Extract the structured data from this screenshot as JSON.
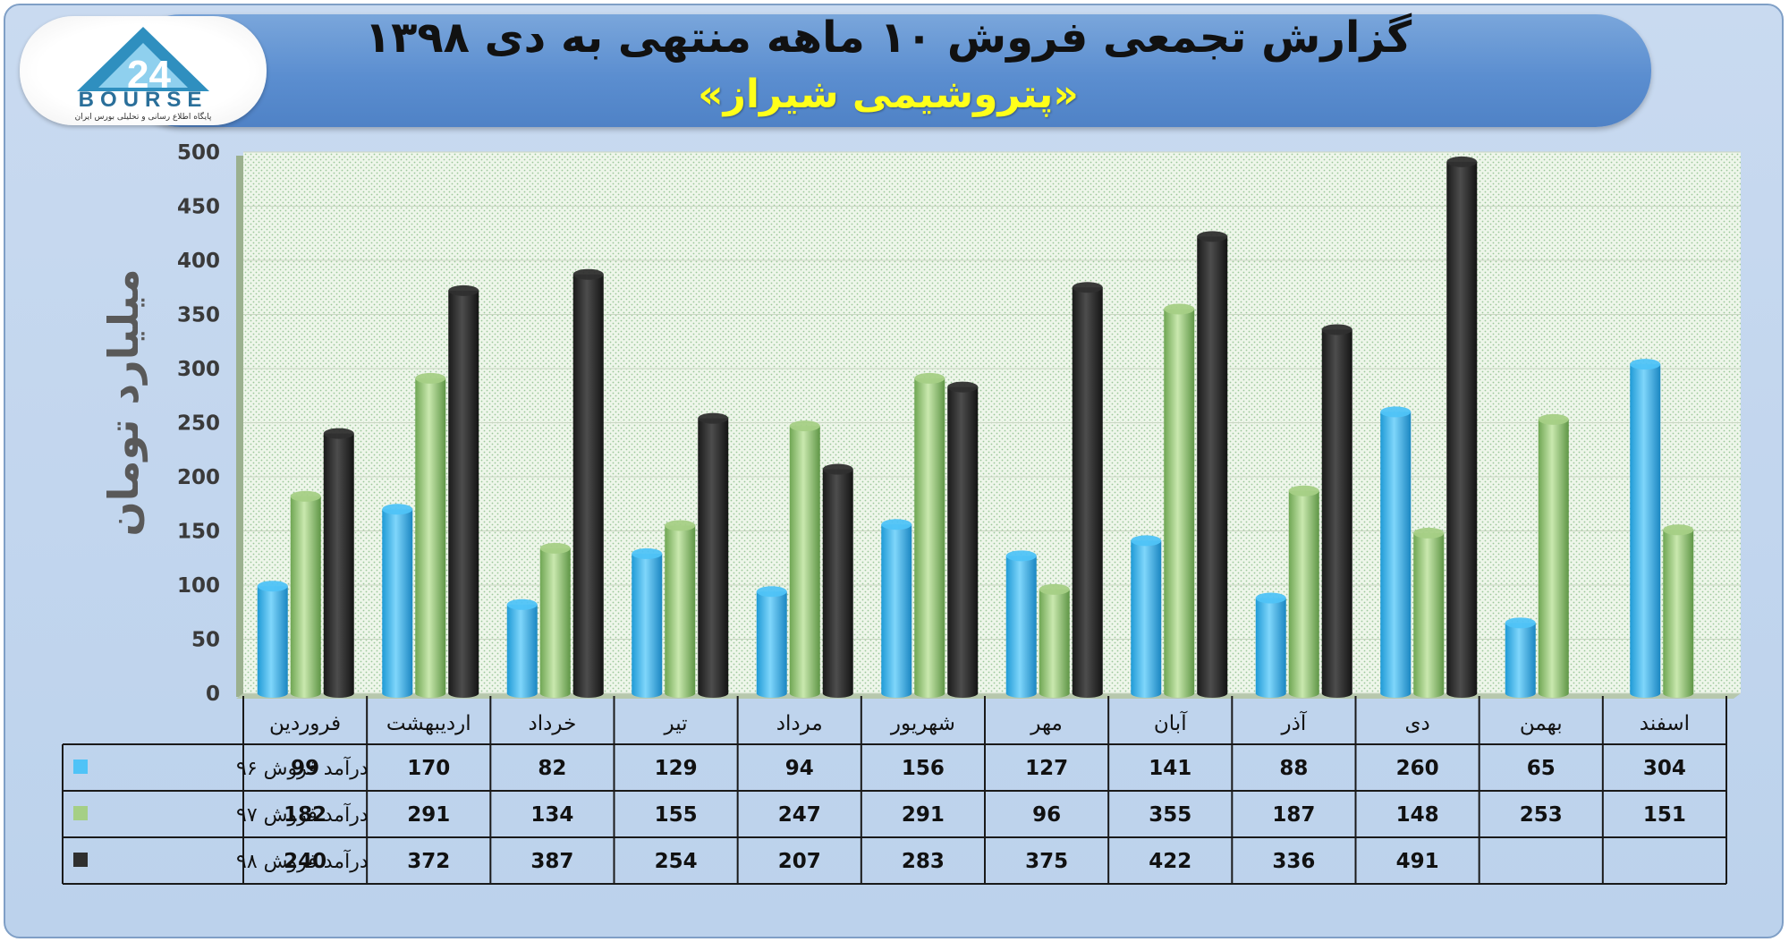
{
  "header": {
    "title": "گزارش تجمعی فروش ۱۰ ماهه منتهی به دی ۱۳۹۸",
    "subtitle": "«پتروشیمی شیراز»"
  },
  "logo": {
    "text": "BOURSE",
    "tagline": "پایگاه اطلاع رسانی و تحلیلی بورس ایران"
  },
  "colors": {
    "series96": "#4fc3f7",
    "series97": "#a5cf85",
    "series98": "#2f2f2f",
    "plot_background": "#e9f3e4",
    "banner": "#5b8ed0"
  },
  "chart_data": {
    "type": "bar",
    "ylabel": "میلیارد تومان",
    "ylim": [
      0,
      500
    ],
    "yticks": [
      0,
      50,
      100,
      150,
      200,
      250,
      300,
      350,
      400,
      450,
      500
    ],
    "categories": [
      "فروردین",
      "اردیبهشت",
      "خرداد",
      "تیر",
      "مرداد",
      "شهریور",
      "مهر",
      "آبان",
      "آذر",
      "دی",
      "بهمن",
      "اسفند"
    ],
    "series": [
      {
        "name": "درآمد فروش ۹۶",
        "values": [
          99,
          170,
          82,
          129,
          94,
          156,
          127,
          141,
          88,
          260,
          65,
          304
        ]
      },
      {
        "name": "درآمد فروش ۹۷",
        "values": [
          182,
          291,
          134,
          155,
          247,
          291,
          96,
          355,
          187,
          148,
          253,
          151
        ]
      },
      {
        "name": "درآمد فروش ۹۸",
        "values": [
          240,
          372,
          387,
          254,
          207,
          283,
          375,
          422,
          336,
          491,
          null,
          null
        ]
      }
    ],
    "grid": true,
    "legend": "data-table-left"
  }
}
